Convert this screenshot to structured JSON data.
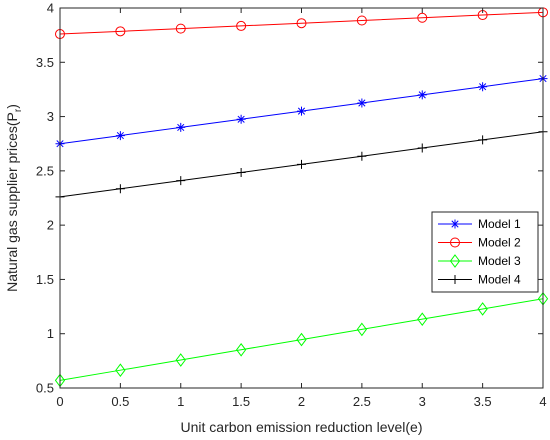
{
  "chart_data": {
    "type": "line",
    "xlabel": "Unit carbon emission reduction level(e)",
    "ylabel": {
      "main": "Natural gas supplier prices(P",
      "subscript": "r",
      "close": ")"
    },
    "x": [
      0,
      0.5,
      1,
      1.5,
      2,
      2.5,
      3,
      3.5,
      4
    ],
    "xlim": [
      0,
      4
    ],
    "ylim": [
      0.5,
      4
    ],
    "xticks": [
      "0",
      "0.5",
      "1",
      "1.5",
      "2",
      "2.5",
      "3",
      "3.5",
      "4"
    ],
    "yticks": [
      "0.5",
      "1",
      "1.5",
      "2",
      "2.5",
      "3",
      "3.5",
      "4"
    ],
    "grid": false,
    "legend_position": "right",
    "series": [
      {
        "name": "Model 1",
        "color": "#0000ff",
        "marker": "asterisk",
        "values": [
          2.75,
          2.825,
          2.9,
          2.975,
          3.05,
          3.125,
          3.2,
          3.275,
          3.35
        ]
      },
      {
        "name": "Model 2",
        "color": "#ff0000",
        "marker": "circle",
        "values": [
          3.76,
          3.785,
          3.81,
          3.835,
          3.86,
          3.885,
          3.91,
          3.935,
          3.96
        ]
      },
      {
        "name": "Model 3",
        "color": "#00ff00",
        "marker": "diamond",
        "values": [
          0.57,
          0.664,
          0.758,
          0.852,
          0.946,
          1.04,
          1.134,
          1.228,
          1.322
        ]
      },
      {
        "name": "Model 4",
        "color": "#000000",
        "marker": "plus",
        "values": [
          2.26,
          2.335,
          2.41,
          2.485,
          2.56,
          2.635,
          2.71,
          2.785,
          2.86
        ]
      }
    ]
  }
}
